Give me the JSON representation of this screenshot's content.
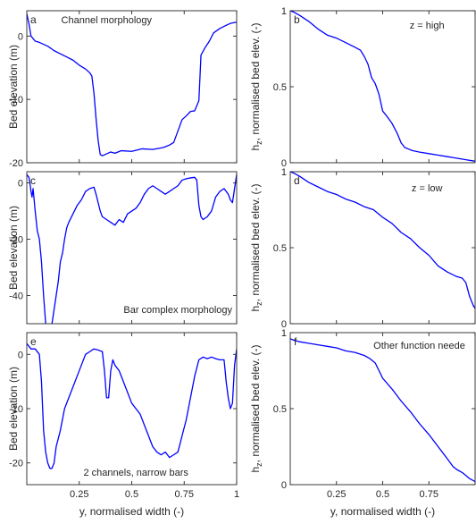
{
  "chart_data": [
    {
      "type": "line",
      "panel": "a",
      "annotation": "Channel morphology",
      "ylabel": "Bed elevation (m)",
      "xlabel": "",
      "xlim": [
        0,
        1
      ],
      "ylim": [
        -20,
        4
      ],
      "xticks": [],
      "yticks": [
        -20,
        -10,
        0
      ],
      "series": [
        {
          "x": [
            0,
            0.01,
            0.02,
            0.04,
            0.06,
            0.08,
            0.1,
            0.13,
            0.16,
            0.19,
            0.22,
            0.25,
            0.28,
            0.3,
            0.31,
            0.32,
            0.33,
            0.34,
            0.35,
            0.36,
            0.38,
            0.4,
            0.42,
            0.45,
            0.5,
            0.55,
            0.6,
            0.65,
            0.68,
            0.7,
            0.72,
            0.74,
            0.76,
            0.78,
            0.8,
            0.82,
            0.83,
            0.85,
            0.87,
            0.89,
            0.92,
            0.95,
            0.97,
            1
          ],
          "y": [
            3.5,
            2,
            0,
            -0.8,
            -1,
            -1.3,
            -1.6,
            -2.3,
            -2.8,
            -3.3,
            -3.8,
            -4.6,
            -5.2,
            -5.8,
            -6.3,
            -9,
            -13,
            -16.5,
            -18.7,
            -18.9,
            -18.6,
            -18.3,
            -18.5,
            -18.1,
            -18.2,
            -17.8,
            -17.9,
            -17.6,
            -17.2,
            -16.8,
            -15,
            -13.2,
            -12.6,
            -11.9,
            -11.8,
            -10.2,
            -3,
            -1.8,
            -0.8,
            0.5,
            1.2,
            1.7,
            2,
            2.2
          ]
        }
      ]
    },
    {
      "type": "line",
      "panel": "b",
      "annotation": "z = high",
      "ylabel": "h_z, normalised bed elev. (-)",
      "xlabel": "",
      "xlim": [
        0,
        1
      ],
      "ylim": [
        0,
        1
      ],
      "xticks": [],
      "yticks": [
        0,
        0.5,
        1
      ],
      "series": [
        {
          "x": [
            0,
            0.02,
            0.05,
            0.1,
            0.15,
            0.2,
            0.25,
            0.3,
            0.35,
            0.38,
            0.4,
            0.42,
            0.44,
            0.46,
            0.48,
            0.5,
            0.52,
            0.55,
            0.58,
            0.6,
            0.62,
            0.64,
            0.66,
            0.7,
            0.75,
            0.8,
            0.85,
            0.9,
            0.95,
            1
          ],
          "y": [
            1,
            0.99,
            0.97,
            0.93,
            0.88,
            0.84,
            0.82,
            0.79,
            0.76,
            0.74,
            0.7,
            0.65,
            0.56,
            0.52,
            0.45,
            0.34,
            0.31,
            0.26,
            0.19,
            0.13,
            0.1,
            0.09,
            0.08,
            0.07,
            0.06,
            0.05,
            0.04,
            0.03,
            0.02,
            0.01
          ]
        }
      ]
    },
    {
      "type": "line",
      "panel": "c",
      "annotation": "Bar complex morphology",
      "ylabel": "Bed elevation (m)",
      "xlabel": "",
      "xlim": [
        0,
        1
      ],
      "ylim": [
        -50,
        4
      ],
      "xticks": [],
      "yticks": [
        -40,
        -20,
        0
      ],
      "series": [
        {
          "x": [
            0,
            0.01,
            0.015,
            0.02,
            0.025,
            0.03,
            0.04,
            0.05,
            0.06,
            0.07,
            0.08,
            0.09,
            0.1,
            0.11,
            0.12,
            0.13,
            0.14,
            0.15,
            0.16,
            0.17,
            0.18,
            0.19,
            0.2,
            0.22,
            0.24,
            0.26,
            0.28,
            0.3,
            0.32,
            0.33,
            0.34,
            0.35,
            0.36,
            0.38,
            0.4,
            0.42,
            0.44,
            0.46,
            0.48,
            0.5,
            0.52,
            0.54,
            0.56,
            0.58,
            0.6,
            0.62,
            0.64,
            0.66,
            0.68,
            0.7,
            0.72,
            0.74,
            0.76,
            0.78,
            0.8,
            0.81,
            0.82,
            0.83,
            0.84,
            0.86,
            0.88,
            0.9,
            0.92,
            0.94,
            0.96,
            0.97,
            0.98,
            0.99,
            1
          ],
          "y": [
            3,
            2,
            0,
            -3,
            -5,
            -2,
            -10,
            -17,
            -20,
            -28,
            -40,
            -50,
            -55,
            -54,
            -50,
            -45,
            -40,
            -35,
            -28,
            -25,
            -20,
            -16,
            -14,
            -11,
            -8,
            -6,
            -3,
            -2,
            -1.5,
            -4,
            -7,
            -10,
            -12,
            -13,
            -14,
            -15,
            -13,
            -14,
            -11,
            -10,
            -9,
            -7,
            -4,
            -2,
            -1,
            -2,
            -3,
            -4,
            -3,
            -2,
            -1,
            1,
            1.5,
            1.8,
            2,
            1,
            -8,
            -12,
            -13,
            -12,
            -10,
            -5,
            -3,
            -2,
            -4,
            -6,
            -7,
            -2,
            3
          ]
        }
      ]
    },
    {
      "type": "line",
      "panel": "d",
      "annotation": "z = low",
      "ylabel": "h_z, normalised bed elev. (-)",
      "xlabel": "",
      "xlim": [
        0,
        1
      ],
      "ylim": [
        0,
        1
      ],
      "xticks": [],
      "yticks": [
        0,
        0.5,
        1
      ],
      "series": [
        {
          "x": [
            0,
            0.02,
            0.05,
            0.1,
            0.15,
            0.2,
            0.25,
            0.3,
            0.35,
            0.4,
            0.45,
            0.5,
            0.55,
            0.6,
            0.65,
            0.7,
            0.75,
            0.8,
            0.85,
            0.9,
            0.93,
            0.95,
            0.97,
            0.99,
            1
          ],
          "y": [
            1,
            0.99,
            0.97,
            0.93,
            0.9,
            0.87,
            0.85,
            0.82,
            0.8,
            0.77,
            0.75,
            0.7,
            0.66,
            0.6,
            0.56,
            0.5,
            0.45,
            0.38,
            0.34,
            0.31,
            0.3,
            0.27,
            0.18,
            0.12,
            0.1
          ]
        }
      ]
    },
    {
      "type": "line",
      "panel": "e",
      "annotation": "2 channels, narrow bars",
      "ylabel": "Bed elevation (m)",
      "xlabel": "y, normalised width (-)",
      "xlim": [
        0,
        1
      ],
      "ylim": [
        -24,
        4
      ],
      "xticks": [
        0.25,
        0.5,
        0.75,
        1
      ],
      "yticks": [
        -20,
        -10,
        0
      ],
      "series": [
        {
          "x": [
            0,
            0.02,
            0.04,
            0.06,
            0.07,
            0.08,
            0.09,
            0.1,
            0.11,
            0.12,
            0.13,
            0.14,
            0.16,
            0.18,
            0.2,
            0.22,
            0.24,
            0.26,
            0.28,
            0.3,
            0.32,
            0.34,
            0.36,
            0.37,
            0.38,
            0.39,
            0.4,
            0.41,
            0.42,
            0.44,
            0.46,
            0.48,
            0.5,
            0.52,
            0.54,
            0.56,
            0.58,
            0.6,
            0.62,
            0.64,
            0.66,
            0.68,
            0.7,
            0.72,
            0.74,
            0.76,
            0.78,
            0.8,
            0.82,
            0.84,
            0.86,
            0.88,
            0.9,
            0.92,
            0.94,
            0.95,
            0.96,
            0.97,
            0.98,
            0.99,
            1
          ],
          "y": [
            2,
            1,
            1,
            0,
            -5,
            -14,
            -18,
            -20,
            -21,
            -21,
            -20,
            -17,
            -14,
            -10,
            -8,
            -6,
            -4,
            -2,
            0,
            0.5,
            1,
            0.8,
            0.5,
            -3,
            -8,
            -8,
            -3,
            -1,
            -2,
            -3,
            -5,
            -7,
            -9,
            -10,
            -11,
            -13,
            -15,
            -17,
            -18,
            -18.5,
            -18,
            -19,
            -18.5,
            -18,
            -15,
            -12,
            -8,
            -4,
            -1,
            -0.5,
            -0.8,
            -0.5,
            -0.8,
            -1,
            -1,
            -5,
            -8,
            -10,
            -9,
            -2,
            1
          ]
        }
      ]
    },
    {
      "type": "line",
      "panel": "f",
      "annotation": "Other function neede",
      "ylabel": "h_z, normalised bed elev. (-)",
      "xlabel": "y, normalised width (-)",
      "xlim": [
        0,
        1
      ],
      "ylim": [
        0,
        1
      ],
      "xticks": [
        0.25,
        0.5,
        0.75
      ],
      "yticks": [
        0,
        0.5,
        1
      ],
      "series": [
        {
          "x": [
            0,
            0.02,
            0.05,
            0.1,
            0.15,
            0.2,
            0.25,
            0.3,
            0.35,
            0.4,
            0.43,
            0.46,
            0.5,
            0.55,
            0.6,
            0.65,
            0.7,
            0.75,
            0.8,
            0.85,
            0.88,
            0.9,
            0.93,
            0.95,
            0.97,
            1
          ],
          "y": [
            0.96,
            0.95,
            0.94,
            0.93,
            0.92,
            0.91,
            0.9,
            0.88,
            0.87,
            0.85,
            0.83,
            0.8,
            0.7,
            0.63,
            0.55,
            0.48,
            0.4,
            0.33,
            0.25,
            0.17,
            0.12,
            0.1,
            0.08,
            0.06,
            0.04,
            0.02
          ]
        }
      ]
    }
  ],
  "axis_text": {
    "ylabel_left": "Bed elevation (m)",
    "ylabel_right_main": "h",
    "ylabel_right_sub": "z",
    "ylabel_right_rest": ", normalised bed elev. (-)",
    "xlabel": "y, normalised width (-)"
  },
  "colors": {
    "line": "#0000ff",
    "axes": "#262626"
  }
}
